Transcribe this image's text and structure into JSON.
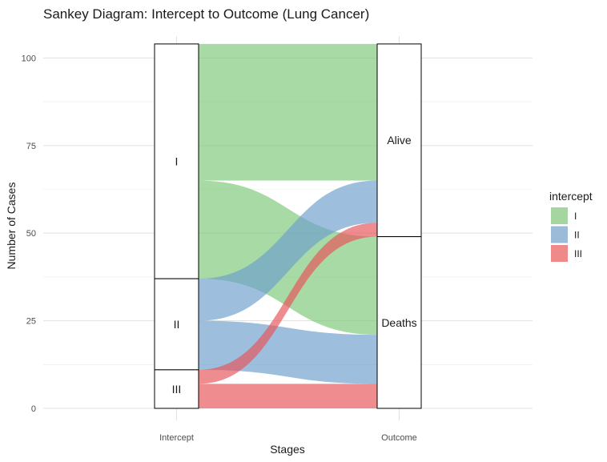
{
  "chart_data": {
    "type": "sankey",
    "title": "Sankey Diagram: Intercept to Outcome (Lung Cancer)",
    "xlabel": "Stages",
    "ylabel": "Number of Cases",
    "ylim": [
      0,
      104
    ],
    "y_ticks": [
      0,
      25,
      50,
      75,
      100
    ],
    "grid": true,
    "stages": [
      "Intercept",
      "Outcome"
    ],
    "nodes": {
      "Intercept": [
        {
          "name": "I",
          "value": 67
        },
        {
          "name": "II",
          "value": 26
        },
        {
          "name": "III",
          "value": 11
        }
      ],
      "Outcome": [
        {
          "name": "Alive",
          "value": 55
        },
        {
          "name": "Deaths",
          "value": 49
        }
      ]
    },
    "flows": [
      {
        "intercept": "I",
        "outcome": "Alive",
        "value": 39
      },
      {
        "intercept": "I",
        "outcome": "Deaths",
        "value": 28
      },
      {
        "intercept": "II",
        "outcome": "Alive",
        "value": 12
      },
      {
        "intercept": "II",
        "outcome": "Deaths",
        "value": 14
      },
      {
        "intercept": "III",
        "outcome": "Alive",
        "value": 4
      },
      {
        "intercept": "III",
        "outcome": "Deaths",
        "value": 7
      }
    ],
    "legend": {
      "title": "intercept",
      "position": "right",
      "items": [
        {
          "name": "I",
          "color": "#a6d6a0"
        },
        {
          "name": "II",
          "color": "#9bbbd9"
        },
        {
          "name": "III",
          "color": "#ef8a8a"
        }
      ]
    },
    "colors": {
      "I": "#7fc97a",
      "II": "#6f9fcc",
      "III": "#e8555a"
    }
  }
}
